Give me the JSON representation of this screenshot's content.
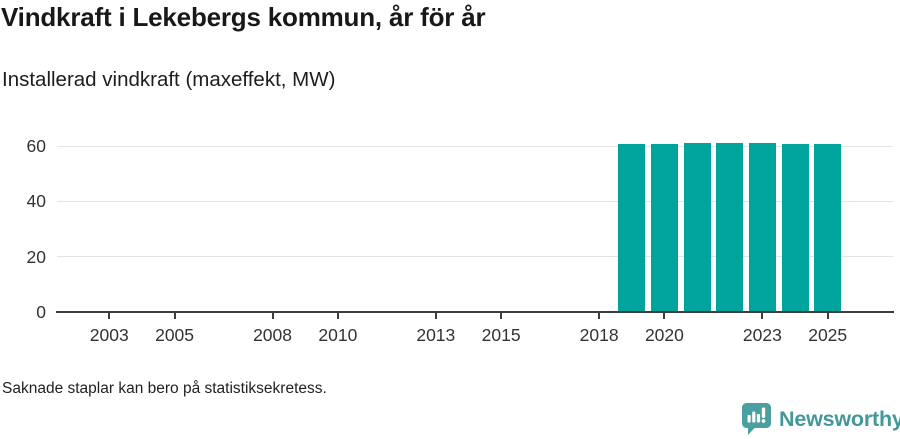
{
  "header": {
    "title": "Vindkraft i Lekebergs kommun, år för år",
    "subtitle": "Installerad vindkraft (maxeffekt, MW)"
  },
  "chart_data": {
    "type": "bar",
    "title": "Vindkraft i Lekebergs kommun, år för år",
    "ylabel": "Installerad vindkraft (maxeffekt, MW)",
    "xlabel": "",
    "x": [
      2019,
      2020,
      2021,
      2022,
      2023,
      2024,
      2025
    ],
    "values": [
      60.6,
      60.6,
      61.2,
      61.2,
      61.2,
      60.8,
      60.8
    ],
    "xticks": [
      2003,
      2005,
      2008,
      2010,
      2013,
      2015,
      2018,
      2020,
      2023,
      2025
    ],
    "yticks": [
      0,
      20,
      40,
      60
    ],
    "xlim": [
      2001.4,
      2027.0
    ],
    "ylim": [
      0,
      65.8
    ],
    "grid": "horizontal",
    "legend": "none",
    "bar_color": "#00a49c"
  },
  "footer": {
    "note": "Saknade staplar kan bero på statistiksekretess."
  },
  "branding": {
    "logo_text": "Newsworthy",
    "logo_icon": "newsworthy-chart-bubble-icon",
    "brand_color": "#43989b",
    "icon_fill": "#4a9fa0"
  },
  "colors": {
    "bar": "#00a49c",
    "gridline": "#e3e3e3",
    "axis": "#3d3d3d",
    "tick_label": "#333333",
    "title_text": "#181818",
    "footnote_text": "#222222"
  }
}
